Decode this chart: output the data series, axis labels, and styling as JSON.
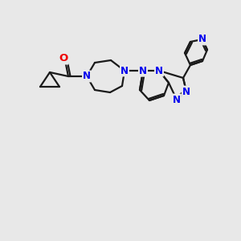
{
  "bg_color": "#e8e8e8",
  "bond_color": "#1a1a1a",
  "N_color": "#0000ee",
  "O_color": "#ee0000",
  "lw": 1.6,
  "fs": 8.5,
  "figsize": [
    3.0,
    3.0
  ],
  "dpi": 100,
  "xlim": [
    0,
    300
  ],
  "ylim": [
    0,
    300
  ]
}
